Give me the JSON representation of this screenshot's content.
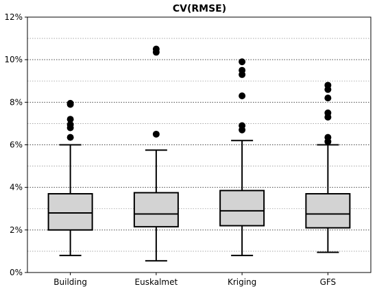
{
  "chart_data": {
    "type": "box",
    "title": "CV(RMSE)",
    "xlabel": "",
    "ylabel": "",
    "ylim": [
      0,
      12
    ],
    "y_unit": "%",
    "y_ticks": [
      0,
      2,
      4,
      6,
      8,
      10,
      12
    ],
    "y_tick_labels": [
      "0%",
      "2%",
      "4%",
      "6%",
      "8%",
      "10%",
      "12%"
    ],
    "grid": {
      "major": "dotted",
      "minor": "dotted",
      "minor_step": 1
    },
    "box_fill": "#d3d3d3",
    "categories": [
      "Building",
      "Euskalmet",
      "Kriging",
      "GFS"
    ],
    "series": [
      {
        "category": "Building",
        "whisker_low": 0.8,
        "q1": 2.0,
        "median": 2.8,
        "q3": 3.7,
        "whisker_high": 6.0,
        "outliers": [
          6.35,
          6.8,
          6.95,
          7.2,
          7.9,
          7.95
        ]
      },
      {
        "category": "Euskalmet",
        "whisker_low": 0.55,
        "q1": 2.15,
        "median": 2.75,
        "q3": 3.75,
        "whisker_high": 5.75,
        "outliers": [
          6.5,
          10.35,
          10.5
        ]
      },
      {
        "category": "Kriging",
        "whisker_low": 0.8,
        "q1": 2.2,
        "median": 2.9,
        "q3": 3.85,
        "whisker_high": 6.2,
        "outliers": [
          6.7,
          6.9,
          8.3,
          9.3,
          9.5,
          9.9
        ]
      },
      {
        "category": "GFS",
        "whisker_low": 0.95,
        "q1": 2.1,
        "median": 2.75,
        "q3": 3.7,
        "whisker_high": 6.0,
        "outliers": [
          6.15,
          6.35,
          7.3,
          7.5,
          8.2,
          8.6,
          8.8
        ]
      }
    ]
  }
}
